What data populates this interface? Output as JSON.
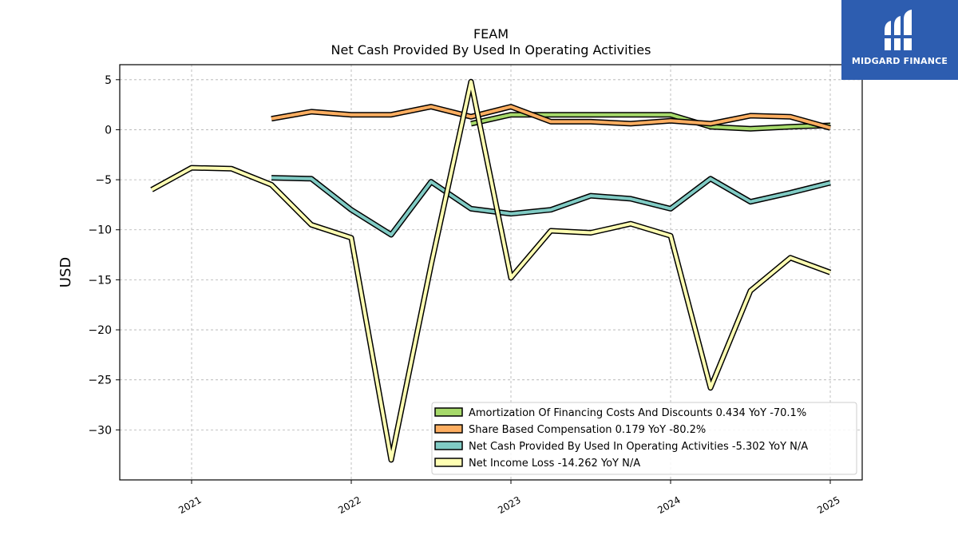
{
  "chart_data": {
    "type": "line",
    "title": "FEAM",
    "subtitle": "Net Cash Provided By Used In Operating Activities",
    "ylabel": "USD",
    "xlabel": "",
    "ylim": [
      -35,
      6.5
    ],
    "xlim": [
      2020.55,
      2025.2
    ],
    "yticks": [
      5,
      0,
      -5,
      -10,
      -15,
      -20,
      -25,
      -30
    ],
    "ytick_labels": [
      "5",
      "0",
      "−5",
      "−10",
      "−15",
      "−20",
      "−25",
      "−30"
    ],
    "xticks": [
      2021,
      2022,
      2023,
      2024,
      2025
    ],
    "xtick_labels": [
      "2021",
      "2022",
      "2023",
      "2024",
      "2025"
    ],
    "grid": true,
    "legend_position": "lower-right",
    "series": [
      {
        "name": "Amortization Of Financing Costs And Discounts",
        "legend": "Amortization Of Financing Costs And Discounts  0.434 YoY -70.1%",
        "color": "#a6d96a",
        "x": [
          2022.75,
          2023.0,
          2023.25,
          2023.5,
          2023.75,
          2024.0,
          2024.25,
          2024.5,
          2024.75,
          2025.0
        ],
        "y": [
          0.6,
          1.5,
          1.5,
          1.5,
          1.5,
          1.5,
          0.3,
          0.1,
          0.3,
          0.434
        ]
      },
      {
        "name": "Share Based Compensation",
        "legend": "Share Based Compensation  0.179 YoY -80.2%",
        "color": "#fdae61",
        "x": [
          2021.5,
          2021.75,
          2022.0,
          2022.25,
          2022.5,
          2022.75,
          2023.0,
          2023.25,
          2023.5,
          2023.75,
          2024.0,
          2024.25,
          2024.5,
          2024.75,
          2025.0
        ],
        "y": [
          1.1,
          1.8,
          1.5,
          1.5,
          2.3,
          1.3,
          2.3,
          0.8,
          0.8,
          0.6,
          0.9,
          0.6,
          1.4,
          1.3,
          0.179
        ]
      },
      {
        "name": "Net Cash Provided By Used In Operating Activities",
        "legend": "Net Cash Provided By Used In Operating Activities  -5.302 YoY N/A",
        "color": "#80cbc4",
        "x": [
          2021.5,
          2021.75,
          2022.0,
          2022.25,
          2022.5,
          2022.75,
          2023.0,
          2023.25,
          2023.5,
          2023.75,
          2024.0,
          2024.25,
          2024.5,
          2024.75,
          2025.0
        ],
        "y": [
          -4.8,
          -4.9,
          -8.0,
          -10.5,
          -5.2,
          -7.9,
          -8.4,
          -8.0,
          -6.6,
          -6.9,
          -7.9,
          -4.9,
          -7.2,
          -6.3,
          -5.302
        ]
      },
      {
        "name": "Net Income Loss",
        "legend": "Net Income Loss  -14.262 YoY N/A",
        "color": "#ffffb3",
        "x": [
          2020.75,
          2021.0,
          2021.25,
          2021.5,
          2021.75,
          2022.0,
          2022.25,
          2022.5,
          2022.75,
          2023.0,
          2023.25,
          2023.5,
          2023.75,
          2024.0,
          2024.25,
          2024.5,
          2024.75,
          2025.0
        ],
        "y": [
          -6.0,
          -3.8,
          -3.9,
          -5.5,
          -9.5,
          -10.8,
          -33.0,
          -13.5,
          4.8,
          -14.8,
          -10.1,
          -10.3,
          -9.4,
          -10.6,
          -25.8,
          -16.1,
          -12.8,
          -14.262
        ]
      }
    ]
  },
  "logo": {
    "text": "MIDGARD FINANCE",
    "color": "#2d5db0"
  }
}
